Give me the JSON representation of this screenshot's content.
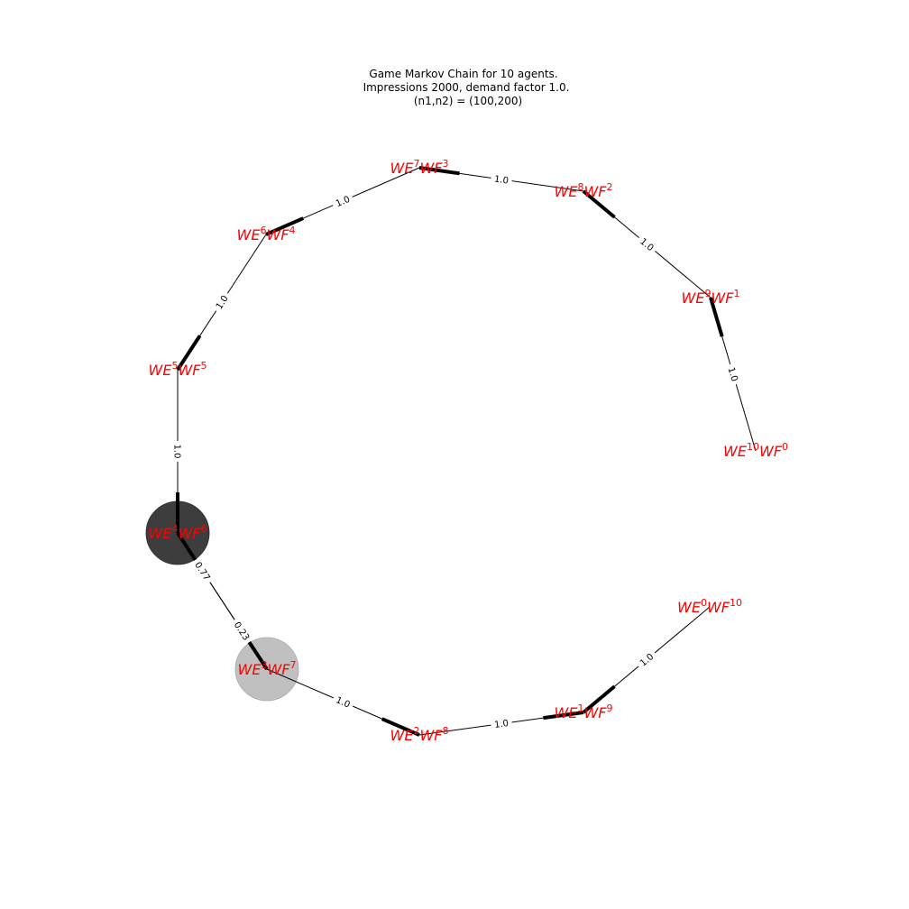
{
  "title": {
    "line1": "Game Markov Chain for 10 agents.",
    "line2": "Impressions 2000, demand factor 1.0.",
    "line3": "(n1,n2) = (100,200)"
  },
  "colors": {
    "label": "#ff0000",
    "edge": "#000000",
    "dark_node": "#3d3d3d",
    "light_node": "#c0c0c0"
  },
  "nodes": [
    {
      "id": "n10",
      "e": "10",
      "f": "0"
    },
    {
      "id": "n9",
      "e": "9",
      "f": "1"
    },
    {
      "id": "n8",
      "e": "8",
      "f": "2"
    },
    {
      "id": "n7",
      "e": "7",
      "f": "3"
    },
    {
      "id": "n6",
      "e": "6",
      "f": "4"
    },
    {
      "id": "n5",
      "e": "5",
      "f": "5"
    },
    {
      "id": "n4",
      "e": "4",
      "f": "6"
    },
    {
      "id": "n3",
      "e": "3",
      "f": "7"
    },
    {
      "id": "n2",
      "e": "2",
      "f": "8"
    },
    {
      "id": "n1",
      "e": "1",
      "f": "9"
    },
    {
      "id": "n0",
      "e": "0",
      "f": "10"
    }
  ],
  "edges": [
    {
      "from": "n10",
      "to": "n9",
      "label": "1.0"
    },
    {
      "from": "n9",
      "to": "n8",
      "label": "1.0"
    },
    {
      "from": "n8",
      "to": "n7",
      "label": "1.0"
    },
    {
      "from": "n7",
      "to": "n6",
      "label": "1.0"
    },
    {
      "from": "n6",
      "to": "n5",
      "label": "1.0"
    },
    {
      "from": "n5",
      "to": "n4",
      "label": "1.0"
    },
    {
      "from": "n4",
      "to": "n3",
      "label": "0.77"
    },
    {
      "from": "n3",
      "to": "n4",
      "label": "0.23"
    },
    {
      "from": "n3",
      "to": "n2",
      "label": "1.0"
    },
    {
      "from": "n2",
      "to": "n1",
      "label": "1.0"
    },
    {
      "from": "n0",
      "to": "n1",
      "label": "1.0"
    }
  ],
  "highlighted": [
    {
      "node": "n4",
      "style": "dark"
    },
    {
      "node": "n3",
      "style": "light"
    }
  ]
}
